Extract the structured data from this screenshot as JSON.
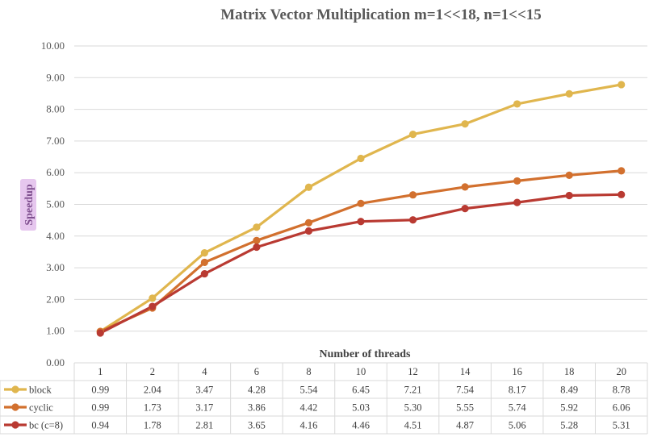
{
  "chart_data": {
    "type": "line",
    "title": "Matrix Vector Multiplication m=1<<18, n=1<<15",
    "xlabel": "Number of threads",
    "ylabel": "Speedup",
    "categories": [
      "1",
      "2",
      "4",
      "6",
      "8",
      "10",
      "12",
      "14",
      "16",
      "18",
      "20"
    ],
    "yticks": [
      "0.00",
      "1.00",
      "2.00",
      "3.00",
      "4.00",
      "5.00",
      "6.00",
      "7.00",
      "8.00",
      "9.00",
      "10.00"
    ],
    "ylim": [
      0,
      10
    ],
    "grid": true,
    "legend": "data-table",
    "series": [
      {
        "name": "block",
        "color": "#e0b64e",
        "values": [
          0.99,
          2.04,
          3.47,
          4.28,
          5.54,
          6.45,
          7.21,
          7.54,
          8.17,
          8.49,
          8.78
        ],
        "labels": [
          "0.99",
          "2.04",
          "3.47",
          "4.28",
          "5.54",
          "6.45",
          "7.21",
          "7.54",
          "8.17",
          "8.49",
          "8.78"
        ]
      },
      {
        "name": "cyclic",
        "color": "#d2702e",
        "values": [
          0.99,
          1.73,
          3.17,
          3.86,
          4.42,
          5.03,
          5.3,
          5.55,
          5.74,
          5.92,
          6.06
        ],
        "labels": [
          "0.99",
          "1.73",
          "3.17",
          "3.86",
          "4.42",
          "5.03",
          "5.30",
          "5.55",
          "5.74",
          "5.92",
          "6.06"
        ]
      },
      {
        "name": "bc (c=8)",
        "color": "#b93a32",
        "values": [
          0.94,
          1.78,
          2.81,
          3.65,
          4.16,
          4.46,
          4.51,
          4.87,
          5.06,
          5.28,
          5.31
        ],
        "labels": [
          "0.94",
          "1.78",
          "2.81",
          "3.65",
          "4.16",
          "4.46",
          "4.51",
          "4.87",
          "5.06",
          "5.28",
          "5.31"
        ]
      }
    ]
  }
}
